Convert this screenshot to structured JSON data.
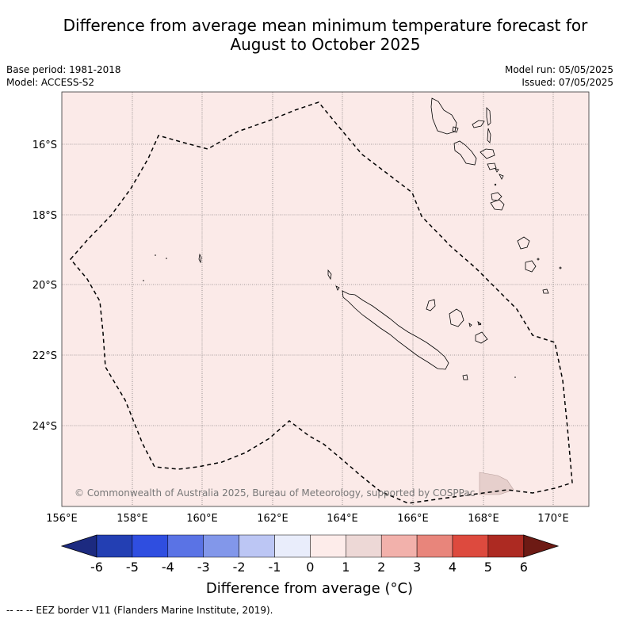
{
  "title_line1": "Difference from average mean minimum temperature forecast for",
  "title_line2": "August to October 2025",
  "meta": {
    "base_period": "Base period: 1981-2018",
    "model": "Model: ACCESS-S2",
    "model_run": "Model run: 05/05/2025",
    "issued": "Issued: 07/05/2025"
  },
  "map": {
    "lon_ticks": [
      "156°E",
      "158°E",
      "160°E",
      "162°E",
      "164°E",
      "166°E",
      "168°E",
      "170°E"
    ],
    "lat_ticks": [
      "16°S",
      "18°S",
      "20°S",
      "22°S",
      "24°S"
    ],
    "copyright": "© Commonwealth of Australia 2025, Bureau of Meteorology, supported by COSPPac",
    "fill_color": "#fbeae8",
    "anomaly_class": "0 to 1"
  },
  "colorbar": {
    "ticks": [
      "-6",
      "-5",
      "-4",
      "-3",
      "-2",
      "-1",
      "0",
      "1",
      "2",
      "3",
      "4",
      "5",
      "6"
    ],
    "colors": [
      "#1c2a80",
      "#233fb3",
      "#2f4ee0",
      "#5a73e5",
      "#8297ea",
      "#bcc6f4",
      "#e9edfb",
      "#fdecea",
      "#edd8d6",
      "#f2b1ab",
      "#e8857b",
      "#dd4a3e",
      "#ad2a22",
      "#6d1a14"
    ],
    "label": "Difference from average (°C)"
  },
  "footer": "--  --  -- EEZ border V11 (Flanders Marine Institute, 2019)."
}
